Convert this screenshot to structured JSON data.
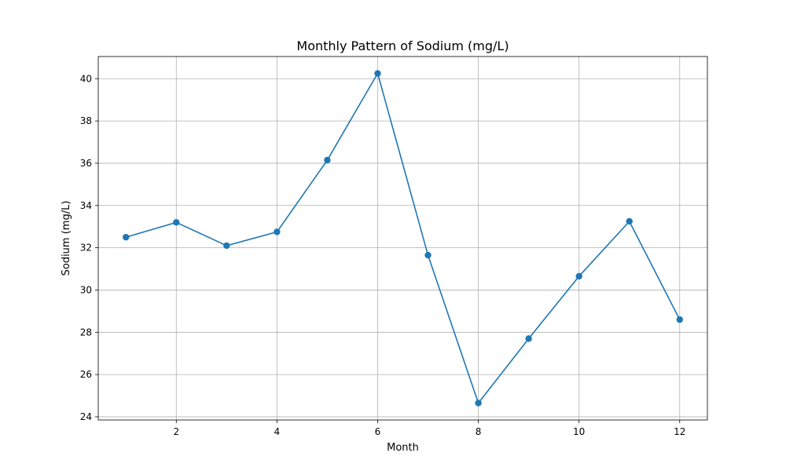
{
  "chart_data": {
    "type": "line",
    "title": "Monthly Pattern of Sodium (mg/L)",
    "xlabel": "Month",
    "ylabel": "Sodium (mg/L)",
    "x": [
      1,
      2,
      3,
      4,
      5,
      6,
      7,
      8,
      9,
      10,
      11,
      12
    ],
    "series": [
      {
        "values": [
          32.5,
          33.2,
          32.1,
          32.75,
          36.15,
          40.25,
          31.65,
          24.65,
          27.7,
          30.65,
          33.25,
          28.6
        ],
        "color": "#1f77b4",
        "marker": "circle"
      }
    ],
    "xlim": [
      0.45,
      12.55
    ],
    "ylim": [
      23.85,
      41.05
    ],
    "xticks": [
      2,
      4,
      6,
      8,
      10,
      12
    ],
    "xtick_labels": [
      "2",
      "4",
      "6",
      "8",
      "10",
      "12"
    ],
    "yticks": [
      24,
      26,
      28,
      30,
      32,
      34,
      36,
      38,
      40
    ],
    "ytick_labels": [
      "24",
      "26",
      "28",
      "30",
      "32",
      "34",
      "36",
      "38",
      "40"
    ],
    "grid": true
  }
}
